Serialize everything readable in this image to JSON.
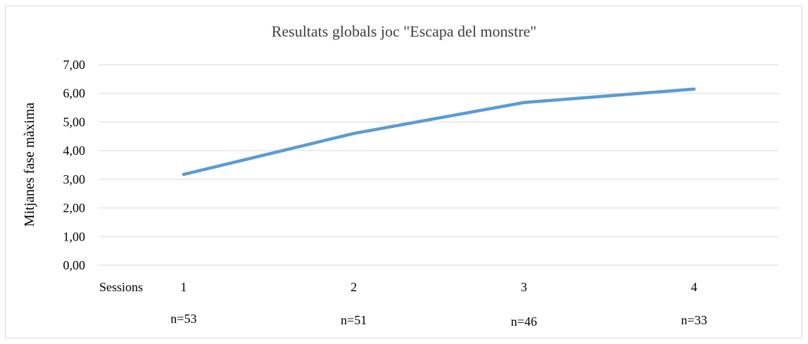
{
  "chart_data": {
    "type": "line",
    "title": "Resultats globals joc \"Escapa del monstre\"",
    "xlabel": "Sessions",
    "ylabel": "Mitjanes fase màxima",
    "categories": [
      "1",
      "2",
      "3",
      "4"
    ],
    "sample_sizes": [
      "n=53",
      "n=51",
      "n=46",
      "n=33"
    ],
    "series": [
      {
        "values": [
          3.17,
          4.6,
          5.68,
          6.15
        ],
        "color": "#5b9bd5"
      }
    ],
    "ylim": [
      0,
      7
    ],
    "y_ticks": [
      "0,00",
      "1,00",
      "2,00",
      "3,00",
      "4,00",
      "5,00",
      "6,00",
      "7,00"
    ],
    "grid": true,
    "legend": "none"
  }
}
